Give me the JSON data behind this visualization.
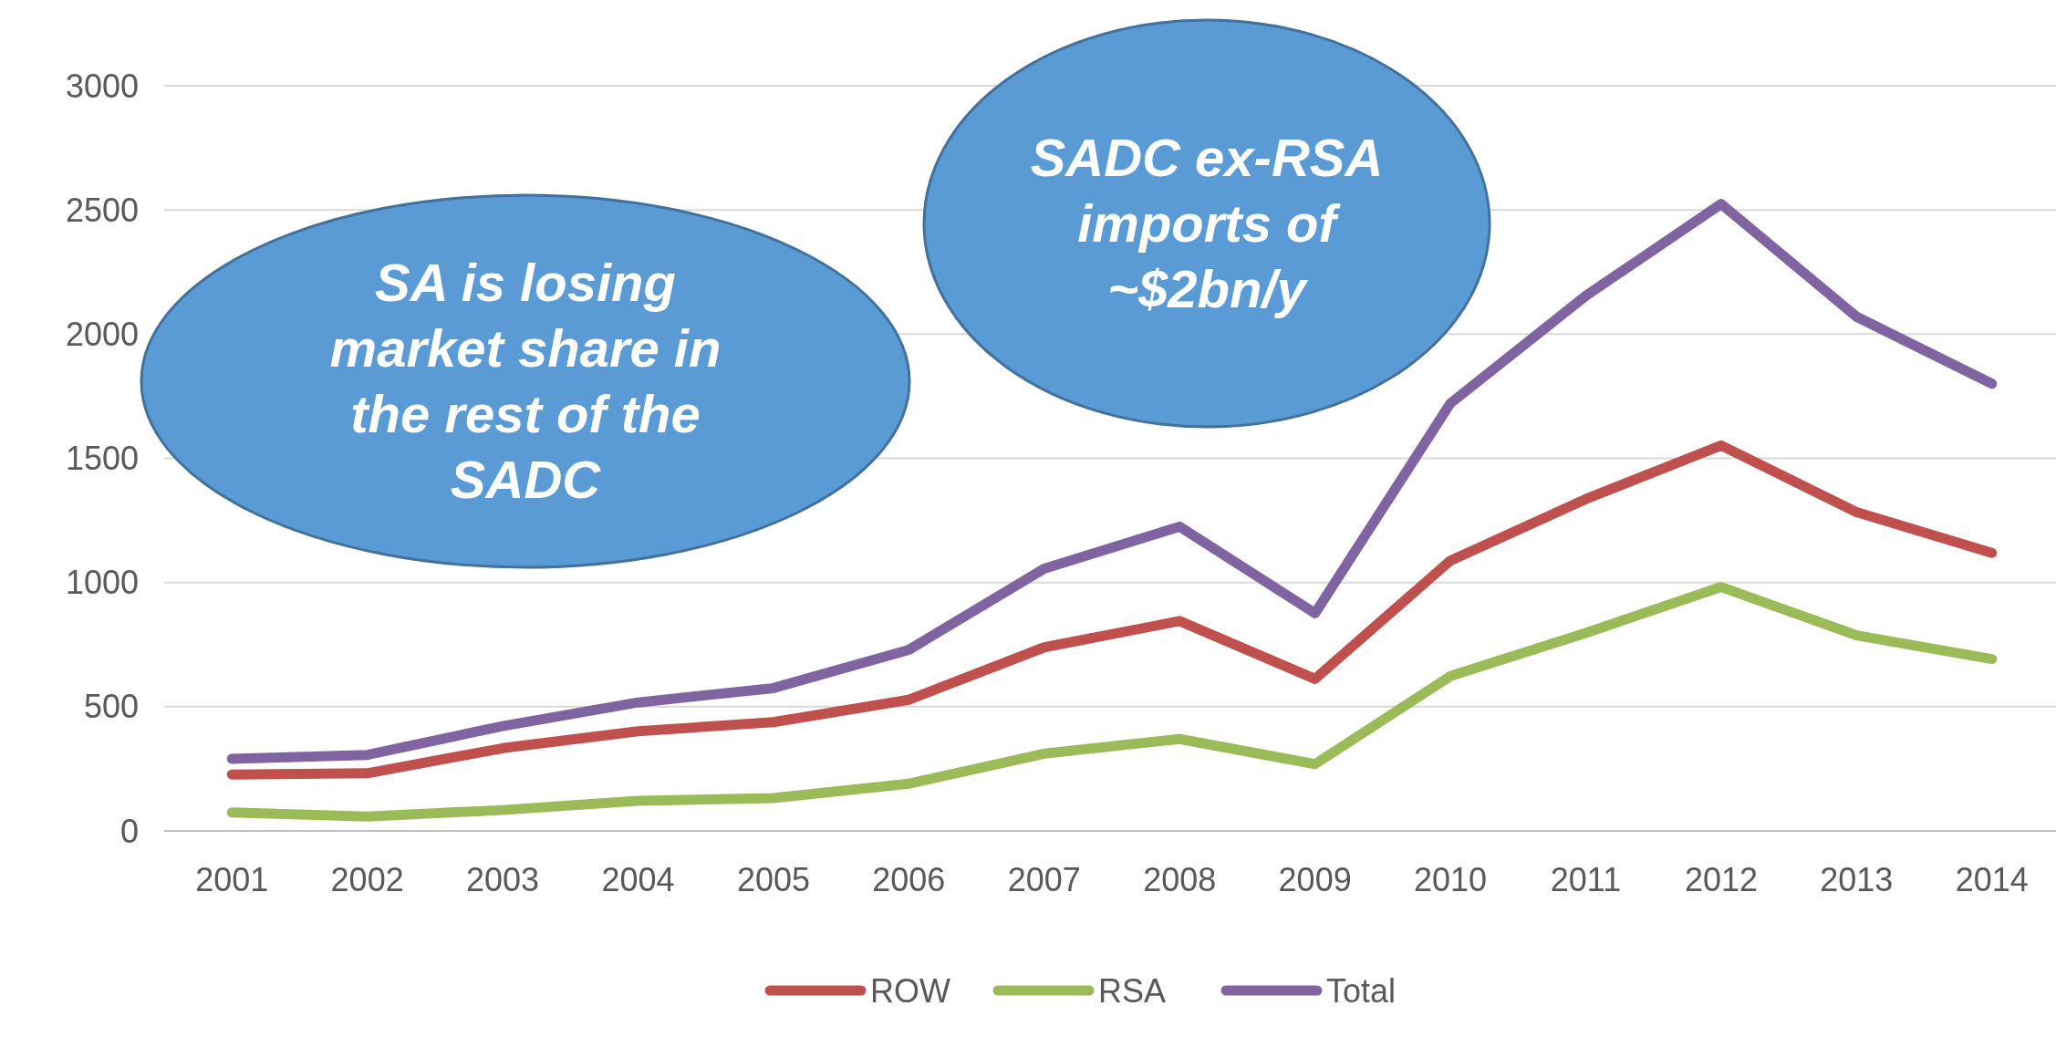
{
  "chart_data": {
    "type": "line",
    "categories": [
      "2001",
      "2002",
      "2003",
      "2004",
      "2005",
      "2006",
      "2007",
      "2008",
      "2009",
      "2010",
      "2011",
      "2012",
      "2013",
      "2014"
    ],
    "series": [
      {
        "name": "ROW",
        "color": "#c0504d",
        "values": [
          227,
          232,
          333,
          401,
          438,
          528,
          739,
          845,
          612,
          1088,
          1336,
          1552,
          1283,
          1119
        ]
      },
      {
        "name": "RSA",
        "color": "#9bbb59",
        "values": [
          74,
          58,
          84,
          121,
          132,
          190,
          311,
          370,
          269,
          623,
          797,
          982,
          787,
          692
        ]
      },
      {
        "name": "Total",
        "color": "#8064a2",
        "values": [
          290,
          306,
          422,
          517,
          575,
          729,
          1056,
          1225,
          876,
          1721,
          2154,
          2524,
          2070,
          1800
        ]
      }
    ],
    "ylim": [
      0,
      3000
    ],
    "yticks": [
      0,
      500,
      1000,
      1500,
      2000,
      2500,
      3000
    ],
    "grid": "y",
    "legend": "bottom",
    "marker": "none",
    "line_style": "solid",
    "annotations": [
      "SA is losing market share in the rest of the SADC",
      "SADC ex-RSA imports of ~$2bn/y"
    ]
  }
}
